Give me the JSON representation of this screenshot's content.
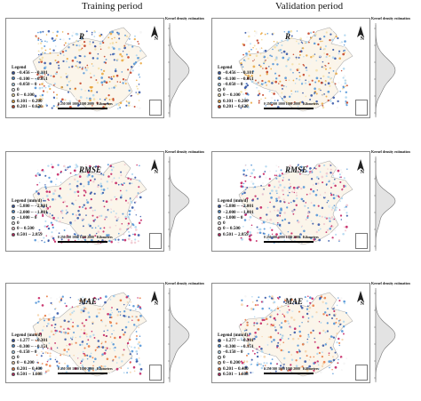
{
  "titles": {
    "training": "Training period",
    "validation": "Validation period"
  },
  "kde_title": "Kernel density estimation",
  "rows": [
    {
      "metric": "R",
      "legend_title": "Legend",
      "legend_items": [
        {
          "label": "−0.456 ~ −0.101",
          "color": "#2c4fa3"
        },
        {
          "label": "−0.100 ~ −0.051",
          "color": "#4a8fd6"
        },
        {
          "label": "−0.050 ~ 0",
          "color": "#a9d3ee"
        },
        {
          "label": "0",
          "color": "#f4f4f4"
        },
        {
          "label": "0 ~ 0.100",
          "color": "#f3dea3"
        },
        {
          "label": "0.101 ~ 0.200",
          "color": "#e9a43a"
        },
        {
          "label": "0.201 ~ 0.620",
          "color": "#c23a1c"
        }
      ]
    },
    {
      "metric": "RMSE",
      "legend_title": "Legend (mm/d)",
      "legend_items": [
        {
          "label": "−5.880 ~ −2.001",
          "color": "#2c4fa3"
        },
        {
          "label": "−2.000 ~ −1.001",
          "color": "#4a8fd6"
        },
        {
          "label": "−1.000 ~ 0",
          "color": "#a9d3ee"
        },
        {
          "label": "0",
          "color": "#f4f4f4"
        },
        {
          "label": "0 ~ 0.500",
          "color": "#f0c7cf"
        },
        {
          "label": "0.501 ~ 2.859",
          "color": "#c2185b"
        }
      ]
    },
    {
      "metric": "MAE",
      "legend_title": "Legend (mm/d)",
      "legend_items": [
        {
          "label": "−1.277 ~ −0.301",
          "color": "#2c4fa3"
        },
        {
          "label": "−0.300 ~ −0.151",
          "color": "#4a8fd6"
        },
        {
          "label": "−0.150 ~ 0",
          "color": "#a9d3ee"
        },
        {
          "label": "0",
          "color": "#f4f4f4"
        },
        {
          "label": "0 ~ 0.200",
          "color": "#f5d2a8"
        },
        {
          "label": "0.201 ~ 0.400",
          "color": "#e8743a"
        },
        {
          "label": "0.501 ~ 1.608",
          "color": "#c2185b"
        }
      ]
    }
  ],
  "scale": {
    "labels": "0  250 500   1000   1500   2000",
    "unit": "Kilometers"
  },
  "north_label": "N"
}
